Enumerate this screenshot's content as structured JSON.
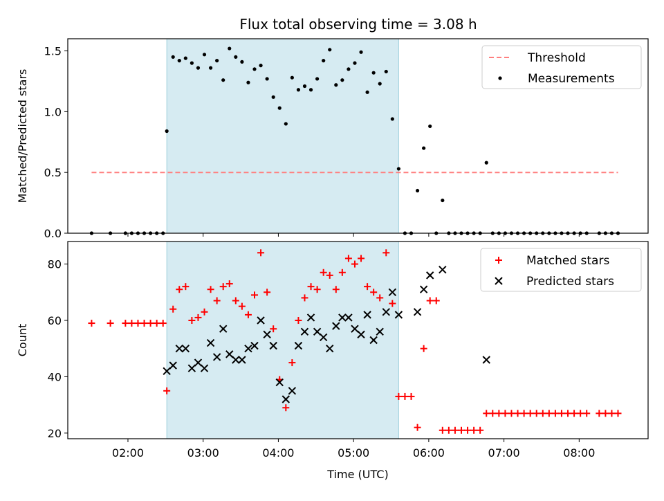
{
  "chart_data": {
    "title": "Flux total observing time = 3.08 h",
    "shaded_interval": {
      "start": "02:31",
      "end": "05:36",
      "color": "#add8e6"
    },
    "panels": [
      {
        "id": "ratio",
        "type": "scatter",
        "xlabel": "",
        "ylabel": "Matched/Predicted stars",
        "xlim": [
          "01:12",
          "08:55"
        ],
        "ylim": [
          0,
          1.6
        ],
        "yticks": [
          0.0,
          0.5,
          1.0,
          1.5
        ],
        "ytick_labels": [
          "0.0",
          "0.5",
          "1.0",
          "1.5"
        ],
        "legend": {
          "position": "top-right",
          "entries": [
            {
              "label": "Threshold",
              "style": "dashed-line",
              "color": "#ff7f7f"
            },
            {
              "label": "Measurements",
              "style": "dot",
              "color": "#000000"
            }
          ]
        },
        "threshold": {
          "y": 0.5,
          "x": [
            "01:31",
            "08:31"
          ],
          "color": "#ff7f7f"
        },
        "series": [
          {
            "color": "#000000",
            "points": [
              [
                "01:31",
                0
              ],
              [
                "01:46",
                0
              ],
              [
                "01:58",
                0
              ],
              [
                "02:03",
                0
              ],
              [
                "02:08",
                0
              ],
              [
                "02:13",
                0
              ],
              [
                "02:18",
                0
              ],
              [
                "02:23",
                0
              ],
              [
                "02:28",
                0
              ],
              [
                "02:31",
                0.84
              ],
              [
                "02:36",
                1.45
              ],
              [
                "02:41",
                1.42
              ],
              [
                "02:46",
                1.44
              ],
              [
                "02:51",
                1.4
              ],
              [
                "02:56",
                1.36
              ],
              [
                "03:01",
                1.47
              ],
              [
                "03:06",
                1.36
              ],
              [
                "03:11",
                1.42
              ],
              [
                "03:16",
                1.26
              ],
              [
                "03:21",
                1.52
              ],
              [
                "03:26",
                1.45
              ],
              [
                "03:31",
                1.41
              ],
              [
                "03:36",
                1.24
              ],
              [
                "03:41",
                1.35
              ],
              [
                "03:46",
                1.38
              ],
              [
                "03:51",
                1.27
              ],
              [
                "03:56",
                1.12
              ],
              [
                "04:01",
                1.03
              ],
              [
                "04:06",
                0.9
              ],
              [
                "04:11",
                1.28
              ],
              [
                "04:16",
                1.18
              ],
              [
                "04:21",
                1.21
              ],
              [
                "04:26",
                1.18
              ],
              [
                "04:31",
                1.27
              ],
              [
                "04:36",
                1.42
              ],
              [
                "04:41",
                1.51
              ],
              [
                "04:46",
                1.22
              ],
              [
                "04:51",
                1.26
              ],
              [
                "04:56",
                1.35
              ],
              [
                "05:01",
                1.4
              ],
              [
                "05:06",
                1.49
              ],
              [
                "05:11",
                1.16
              ],
              [
                "05:16",
                1.32
              ],
              [
                "05:21",
                1.23
              ],
              [
                "05:26",
                1.33
              ],
              [
                "05:31",
                0.94
              ],
              [
                "05:36",
                0.53
              ],
              [
                "05:41",
                0
              ],
              [
                "05:46",
                0
              ],
              [
                "05:51",
                0.35
              ],
              [
                "05:56",
                0.7
              ],
              [
                "06:01",
                0.88
              ],
              [
                "06:06",
                0
              ],
              [
                "06:11",
                0.27
              ],
              [
                "06:16",
                0
              ],
              [
                "06:21",
                0
              ],
              [
                "06:26",
                0
              ],
              [
                "06:31",
                0
              ],
              [
                "06:36",
                0
              ],
              [
                "06:41",
                0
              ],
              [
                "06:46",
                0.58
              ],
              [
                "06:51",
                0
              ],
              [
                "06:56",
                0
              ],
              [
                "07:01",
                0
              ],
              [
                "07:06",
                0
              ],
              [
                "07:11",
                0
              ],
              [
                "07:16",
                0
              ],
              [
                "07:21",
                0
              ],
              [
                "07:26",
                0
              ],
              [
                "07:31",
                0
              ],
              [
                "07:36",
                0
              ],
              [
                "07:41",
                0
              ],
              [
                "07:46",
                0
              ],
              [
                "07:51",
                0
              ],
              [
                "07:56",
                0
              ],
              [
                "08:01",
                0
              ],
              [
                "08:06",
                0
              ],
              [
                "08:16",
                0
              ],
              [
                "08:21",
                0
              ],
              [
                "08:26",
                0
              ],
              [
                "08:31",
                0
              ]
            ]
          }
        ]
      },
      {
        "id": "count",
        "type": "scatter",
        "xlabel": "Time (UTC)",
        "ylabel": "Count",
        "xlim": [
          "01:12",
          "08:55"
        ],
        "ylim": [
          18,
          88
        ],
        "yticks": [
          20,
          40,
          60,
          80
        ],
        "ytick_labels": [
          "20",
          "40",
          "60",
          "80"
        ],
        "xticks": [
          "02:00",
          "03:00",
          "04:00",
          "05:00",
          "06:00",
          "07:00",
          "08:00"
        ],
        "xtick_labels": [
          "02:00",
          "03:00",
          "04:00",
          "05:00",
          "06:00",
          "07:00",
          "08:00"
        ],
        "legend": {
          "position": "top-right",
          "entries": [
            {
              "label": "Matched stars",
              "style": "plus",
              "color": "#ff0000"
            },
            {
              "label": "Predicted stars",
              "style": "x",
              "color": "#000000"
            }
          ]
        },
        "series": [
          {
            "marker": "plus",
            "color": "#ff0000",
            "points": [
              [
                "01:31",
                59
              ],
              [
                "01:46",
                59
              ],
              [
                "01:58",
                59
              ],
              [
                "02:03",
                59
              ],
              [
                "02:08",
                59
              ],
              [
                "02:13",
                59
              ],
              [
                "02:18",
                59
              ],
              [
                "02:23",
                59
              ],
              [
                "02:28",
                59
              ],
              [
                "02:31",
                35
              ],
              [
                "02:36",
                64
              ],
              [
                "02:41",
                71
              ],
              [
                "02:46",
                72
              ],
              [
                "02:51",
                60
              ],
              [
                "02:56",
                61
              ],
              [
                "03:01",
                63
              ],
              [
                "03:06",
                71
              ],
              [
                "03:11",
                67
              ],
              [
                "03:16",
                72
              ],
              [
                "03:21",
                73
              ],
              [
                "03:26",
                67
              ],
              [
                "03:31",
                65
              ],
              [
                "03:36",
                62
              ],
              [
                "03:41",
                69
              ],
              [
                "03:46",
                84
              ],
              [
                "03:51",
                70
              ],
              [
                "03:56",
                57
              ],
              [
                "04:01",
                39
              ],
              [
                "04:06",
                29
              ],
              [
                "04:11",
                45
              ],
              [
                "04:16",
                60
              ],
              [
                "04:21",
                68
              ],
              [
                "04:26",
                72
              ],
              [
                "04:31",
                71
              ],
              [
                "04:36",
                77
              ],
              [
                "04:41",
                76
              ],
              [
                "04:46",
                71
              ],
              [
                "04:51",
                77
              ],
              [
                "04:56",
                82
              ],
              [
                "05:01",
                80
              ],
              [
                "05:06",
                82
              ],
              [
                "05:11",
                72
              ],
              [
                "05:16",
                70
              ],
              [
                "05:21",
                68
              ],
              [
                "05:26",
                84
              ],
              [
                "05:31",
                66
              ],
              [
                "05:36",
                33
              ],
              [
                "05:41",
                33
              ],
              [
                "05:46",
                33
              ],
              [
                "05:51",
                22
              ],
              [
                "05:56",
                50
              ],
              [
                "06:01",
                67
              ],
              [
                "06:06",
                67
              ],
              [
                "06:11",
                21
              ],
              [
                "06:16",
                21
              ],
              [
                "06:21",
                21
              ],
              [
                "06:26",
                21
              ],
              [
                "06:31",
                21
              ],
              [
                "06:36",
                21
              ],
              [
                "06:41",
                21
              ],
              [
                "06:46",
                27
              ],
              [
                "06:51",
                27
              ],
              [
                "06:56",
                27
              ],
              [
                "07:01",
                27
              ],
              [
                "07:06",
                27
              ],
              [
                "07:11",
                27
              ],
              [
                "07:16",
                27
              ],
              [
                "07:21",
                27
              ],
              [
                "07:26",
                27
              ],
              [
                "07:31",
                27
              ],
              [
                "07:36",
                27
              ],
              [
                "07:41",
                27
              ],
              [
                "07:46",
                27
              ],
              [
                "07:51",
                27
              ],
              [
                "07:56",
                27
              ],
              [
                "08:01",
                27
              ],
              [
                "08:06",
                27
              ],
              [
                "08:16",
                27
              ],
              [
                "08:21",
                27
              ],
              [
                "08:26",
                27
              ],
              [
                "08:31",
                27
              ]
            ]
          },
          {
            "marker": "x",
            "color": "#000000",
            "points": [
              [
                "02:31",
                42
              ],
              [
                "02:36",
                44
              ],
              [
                "02:41",
                50
              ],
              [
                "02:46",
                50
              ],
              [
                "02:51",
                43
              ],
              [
                "02:56",
                45
              ],
              [
                "03:01",
                43
              ],
              [
                "03:06",
                52
              ],
              [
                "03:11",
                47
              ],
              [
                "03:16",
                57
              ],
              [
                "03:21",
                48
              ],
              [
                "03:26",
                46
              ],
              [
                "03:31",
                46
              ],
              [
                "03:36",
                50
              ],
              [
                "03:41",
                51
              ],
              [
                "03:46",
                60
              ],
              [
                "03:51",
                55
              ],
              [
                "03:56",
                51
              ],
              [
                "04:01",
                38
              ],
              [
                "04:06",
                32
              ],
              [
                "04:11",
                35
              ],
              [
                "04:16",
                51
              ],
              [
                "04:21",
                56
              ],
              [
                "04:26",
                61
              ],
              [
                "04:31",
                56
              ],
              [
                "04:36",
                54
              ],
              [
                "04:41",
                50
              ],
              [
                "04:46",
                58
              ],
              [
                "04:51",
                61
              ],
              [
                "04:56",
                61
              ],
              [
                "05:01",
                57
              ],
              [
                "05:06",
                55
              ],
              [
                "05:11",
                62
              ],
              [
                "05:16",
                53
              ],
              [
                "05:21",
                56
              ],
              [
                "05:26",
                63
              ],
              [
                "05:31",
                70
              ],
              [
                "05:36",
                62
              ],
              [
                "05:51",
                63
              ],
              [
                "05:56",
                71
              ],
              [
                "06:01",
                76
              ],
              [
                "06:11",
                78
              ],
              [
                "06:46",
                46
              ]
            ]
          }
        ]
      }
    ]
  }
}
